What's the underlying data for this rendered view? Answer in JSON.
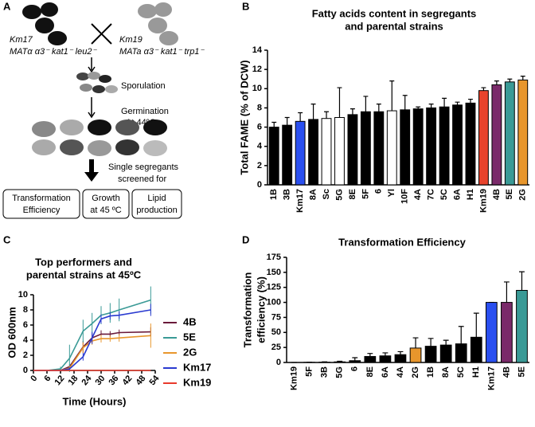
{
  "panel_labels": [
    "A",
    "B",
    "C",
    "D"
  ],
  "diagram": {
    "parent1": "Km17",
    "parent1_genotype": "MATα α3⁻ kat1⁻ leu2⁻",
    "parent2": "Km19",
    "parent2_genotype": "MATa α3⁻ kat1⁻ trp1⁻",
    "step1": "Sporulation",
    "step2": [
      "Germination",
      "At 44ºC"
    ],
    "step3": [
      "Single segregants",
      "screened for"
    ],
    "boxes": [
      [
        "Transformation",
        "Efficiency"
      ],
      [
        "Growth",
        "at 45 ºC"
      ],
      [
        "Lipid",
        "production"
      ]
    ]
  },
  "chart_data": [
    {
      "type": "bar",
      "title": [
        "Fatty acids content in segregants",
        "and parental strains"
      ],
      "y_label": [
        "Total FAME (% of DCW)"
      ],
      "categories": [
        "1B",
        "3B",
        "Km17",
        "8A",
        "Sc",
        "5G",
        "8E",
        "5F",
        "6",
        "Yl",
        "10F",
        "4A",
        "7C",
        "5C",
        "6A",
        "H1",
        "Km19",
        "4B",
        "5E",
        "2G"
      ],
      "values": [
        6.0,
        6.2,
        6.6,
        6.8,
        6.9,
        7.0,
        7.3,
        7.6,
        7.6,
        7.7,
        7.8,
        7.9,
        8.0,
        8.1,
        8.3,
        8.5,
        9.8,
        10.4,
        10.7,
        10.9
      ],
      "errors": [
        0.5,
        0.8,
        0.9,
        1.6,
        0.7,
        3.1,
        0.6,
        1.6,
        0.8,
        3.1,
        1.5,
        0.2,
        0.4,
        0.9,
        0.3,
        0.4,
        0.3,
        0.4,
        0.3,
        0.4
      ],
      "colors": [
        "#000000",
        "#000000",
        "#2a4ff0",
        "#000000",
        "#ffffff",
        "#ffffff",
        "#000000",
        "#000000",
        "#000000",
        "#ffffff",
        "#000000",
        "#000000",
        "#000000",
        "#000000",
        "#000000",
        "#000000",
        "#e8432c",
        "#7a2a6a",
        "#3a9a96",
        "#e8962c"
      ],
      "ylim": [
        0,
        14
      ],
      "yticks": [
        0,
        2,
        4,
        6,
        8,
        10,
        12,
        14
      ]
    },
    {
      "type": "line",
      "title": [
        "Top performers and",
        "parental strains at 45ºC"
      ],
      "x_label": "Time (Hours)",
      "y_label": [
        "OD 600nm"
      ],
      "x": [
        0,
        6,
        12,
        16,
        22,
        26,
        30,
        34,
        38,
        52
      ],
      "series": [
        {
          "name": "4B",
          "color": "#6a1a3a",
          "values": [
            0,
            0,
            0,
            0.5,
            3.1,
            4.3,
            4.8,
            4.8,
            5.0,
            5.1
          ],
          "errors": [
            0,
            0,
            0,
            0.3,
            0.8,
            0.6,
            0.5,
            0.4,
            0.4,
            0.6
          ]
        },
        {
          "name": "5E",
          "color": "#3a9a96",
          "values": [
            0,
            0,
            0.2,
            1.6,
            5.2,
            6.2,
            7.3,
            7.6,
            8.0,
            9.3
          ],
          "errors": [
            0,
            0,
            0.3,
            1.8,
            1.5,
            1.4,
            1.2,
            1.3,
            1.5,
            1.8
          ]
        },
        {
          "name": "2G",
          "color": "#e8962c",
          "values": [
            0,
            0,
            0,
            0.3,
            3.0,
            3.9,
            4.2,
            4.2,
            4.3,
            4.6
          ],
          "errors": [
            0,
            0,
            0,
            0.3,
            0.7,
            0.5,
            0.5,
            0.4,
            0.5,
            1.6
          ]
        },
        {
          "name": "Km17",
          "color": "#2a3ad0",
          "values": [
            0,
            0,
            0,
            0.2,
            1.8,
            4.3,
            6.8,
            7.2,
            7.3,
            8.0
          ],
          "errors": [
            0,
            0,
            0,
            0.2,
            0.5,
            0.8,
            0.6,
            0.5,
            0.5,
            0.8
          ]
        },
        {
          "name": "Km19",
          "color": "#e83a2c",
          "values": [
            0,
            0,
            0,
            0,
            0,
            0,
            0,
            0,
            0,
            0
          ],
          "errors": [
            0,
            0,
            0,
            0,
            0,
            0,
            0,
            0,
            0,
            0
          ]
        }
      ],
      "xlim": [
        0,
        54
      ],
      "xticks": [
        0,
        6,
        12,
        18,
        24,
        30,
        36,
        42,
        48,
        54
      ],
      "ylim": [
        0,
        10
      ],
      "yticks": [
        0,
        2,
        4,
        6,
        8,
        10
      ]
    },
    {
      "type": "bar",
      "title": [
        "Transformation Efficiency"
      ],
      "y_label": [
        "Transformation",
        "efficiency (%)"
      ],
      "categories": [
        "Km19",
        "5F",
        "3B",
        "5G",
        "6",
        "8E",
        "6A",
        "4A",
        "2G",
        "1B",
        "8A",
        "5C",
        "H1",
        "Km17",
        "4B",
        "5E"
      ],
      "values": [
        0,
        0.3,
        0.5,
        1,
        3,
        10,
        11,
        13,
        24,
        27,
        29,
        31,
        42,
        100,
        100,
        120
      ],
      "errors": [
        0,
        0.3,
        0.5,
        1,
        5,
        5,
        5,
        5,
        17,
        13,
        8,
        29,
        40,
        0,
        34,
        31
      ],
      "colors": [
        "#000000",
        "#000000",
        "#000000",
        "#000000",
        "#000000",
        "#000000",
        "#000000",
        "#000000",
        "#e8962c",
        "#000000",
        "#000000",
        "#000000",
        "#000000",
        "#2a4ff0",
        "#7a2a6a",
        "#3a9a96"
      ],
      "ylim": [
        0,
        175
      ],
      "yticks": [
        0,
        25,
        50,
        75,
        100,
        125,
        150,
        175
      ]
    }
  ]
}
